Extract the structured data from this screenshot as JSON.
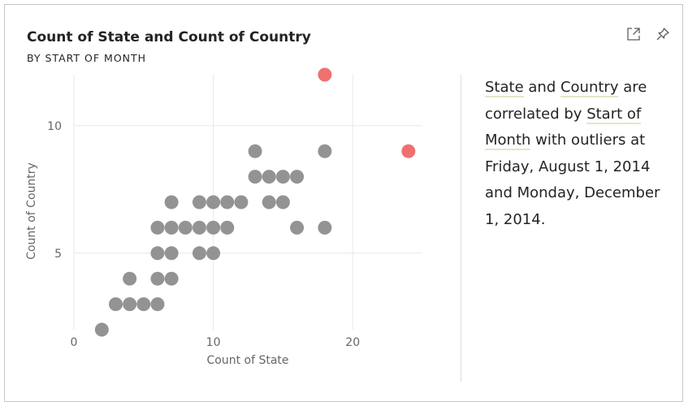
{
  "header": {
    "title": "Count of State and Count of Country",
    "subtitle": "BY START OF MONTH"
  },
  "toolbar": {
    "focus_icon": "focus-mode-icon",
    "pin_icon": "pin-icon"
  },
  "colors": {
    "point": "#8a8a8a",
    "outlier": "#f07070",
    "grid": "#e8e8e8",
    "axis_text": "#666666"
  },
  "chart_data": {
    "type": "scatter",
    "title": "Count of State and Count of Country",
    "subtitle": "BY START OF MONTH",
    "xlabel": "Count of State",
    "ylabel": "Count of Country",
    "xlim": [
      0,
      25
    ],
    "ylim": [
      2,
      12
    ],
    "xticks": [
      0,
      10,
      20
    ],
    "yticks": [
      5,
      10
    ],
    "grid": true,
    "points": [
      {
        "x": 2,
        "y": 2
      },
      {
        "x": 3,
        "y": 3
      },
      {
        "x": 4,
        "y": 3
      },
      {
        "x": 4,
        "y": 4
      },
      {
        "x": 5,
        "y": 3
      },
      {
        "x": 6,
        "y": 3
      },
      {
        "x": 6,
        "y": 4
      },
      {
        "x": 6,
        "y": 5
      },
      {
        "x": 6,
        "y": 6
      },
      {
        "x": 7,
        "y": 4
      },
      {
        "x": 7,
        "y": 5
      },
      {
        "x": 7,
        "y": 6
      },
      {
        "x": 7,
        "y": 7
      },
      {
        "x": 8,
        "y": 6
      },
      {
        "x": 9,
        "y": 5
      },
      {
        "x": 9,
        "y": 6
      },
      {
        "x": 9,
        "y": 7
      },
      {
        "x": 10,
        "y": 5
      },
      {
        "x": 10,
        "y": 6
      },
      {
        "x": 10,
        "y": 7
      },
      {
        "x": 11,
        "y": 6
      },
      {
        "x": 11,
        "y": 7
      },
      {
        "x": 12,
        "y": 7
      },
      {
        "x": 13,
        "y": 8
      },
      {
        "x": 13,
        "y": 9
      },
      {
        "x": 14,
        "y": 7
      },
      {
        "x": 14,
        "y": 8
      },
      {
        "x": 15,
        "y": 7
      },
      {
        "x": 15,
        "y": 8
      },
      {
        "x": 16,
        "y": 6
      },
      {
        "x": 16,
        "y": 8
      },
      {
        "x": 18,
        "y": 6
      },
      {
        "x": 18,
        "y": 9
      }
    ],
    "outliers": [
      {
        "x": 18,
        "y": 12,
        "label": "Friday, August 1, 2014"
      },
      {
        "x": 24,
        "y": 9,
        "label": "Monday, December 1, 2014"
      }
    ]
  },
  "narrative": {
    "t1": "State",
    "t2": " and ",
    "t3": "Country",
    "t4": " are correlated by ",
    "t5": "Start of Month",
    "t6": " with outliers at Friday, August 1, 2014 and Monday, December 1, 2014."
  }
}
